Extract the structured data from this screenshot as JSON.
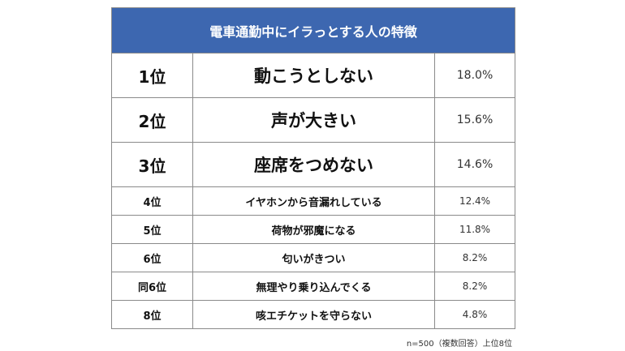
{
  "chart_data": {
    "type": "table",
    "title": "電車通勤中にイラっとする人の特徴",
    "rows": [
      {
        "rank": "1位",
        "item": "動こうとしない",
        "value": "18.0%"
      },
      {
        "rank": "2位",
        "item": "声が大きい",
        "value": "15.6%"
      },
      {
        "rank": "3位",
        "item": "座席をつめない",
        "value": "14.6%"
      },
      {
        "rank": "4位",
        "item": "イヤホンから音漏れしている",
        "value": "12.4%"
      },
      {
        "rank": "5位",
        "item": "荷物が邪魔になる",
        "value": "11.8%"
      },
      {
        "rank": "6位",
        "item": "匂いがきつい",
        "value": "8.2%"
      },
      {
        "rank": "同6位",
        "item": "無理やり乗り込んでくる",
        "value": "8.2%"
      },
      {
        "rank": "8位",
        "item": "咳エチケットを守らない",
        "value": "4.8%"
      }
    ],
    "footnote": "n=500（複数回答）上位8位"
  },
  "colors": {
    "header_bg": "#3d67b0",
    "header_text": "#ffffff",
    "border": "#8a8a8a"
  }
}
